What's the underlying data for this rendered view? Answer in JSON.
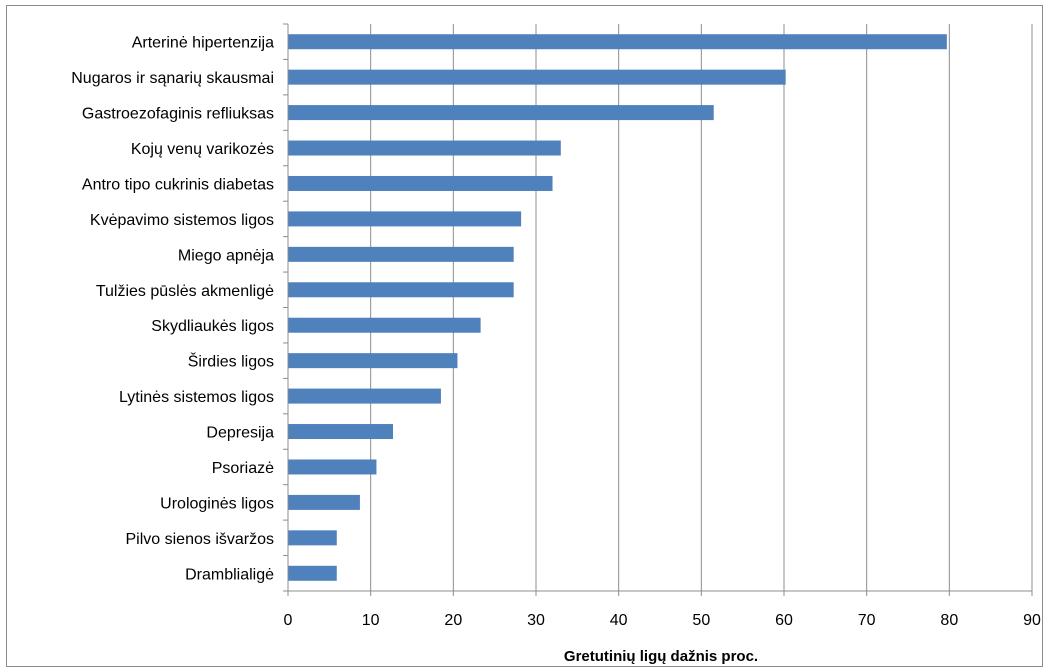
{
  "chart_data": {
    "type": "bar",
    "orientation": "horizontal",
    "title": "",
    "xlabel": "Gretutinių ligų dažnis proc.",
    "ylabel": "",
    "xlim": [
      0,
      90
    ],
    "x_ticks": [
      0,
      10,
      20,
      30,
      40,
      50,
      60,
      70,
      80,
      90
    ],
    "grid": "vertical",
    "legend": "none",
    "bar_color": "#4f81bd",
    "categories": [
      "Arterinė hipertenzija",
      "Nugaros ir sąnarių skausmai",
      "Gastroezofaginis refliuksas",
      "Kojų venų varikozės",
      "Antro tipo cukrinis diabetas",
      "Kvėpavimo sistemos ligos",
      "Miego apnėja ",
      "Tulžies pūslės akmenligė",
      "Skydliaukės ligos ",
      "Širdies ligos ",
      "Lytinės sistemos ligos ",
      "Depresija",
      "Psoriazė",
      "Urologinės ligos ",
      "Pilvo sienos išvaržos",
      "Dramblialigė"
    ],
    "values": [
      79.7,
      60.2,
      51.5,
      33.0,
      32.0,
      28.2,
      27.3,
      27.3,
      23.3,
      20.5,
      18.5,
      12.7,
      10.7,
      8.7,
      5.9,
      5.9
    ]
  }
}
